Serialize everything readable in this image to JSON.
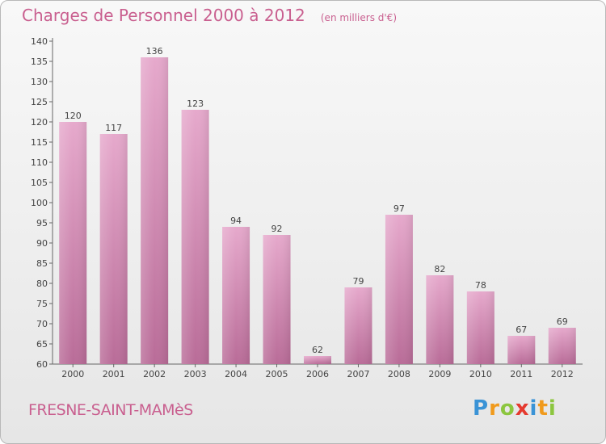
{
  "chart_data": {
    "type": "bar",
    "title": "Charges de Personnel 2000 à 2012",
    "subtitle": "(en milliers d'€)",
    "categories": [
      "2000",
      "2001",
      "2002",
      "2003",
      "2004",
      "2005",
      "2006",
      "2007",
      "2008",
      "2009",
      "2010",
      "2011",
      "2012"
    ],
    "values": [
      120,
      117,
      136,
      123,
      94,
      92,
      62,
      79,
      97,
      82,
      78,
      67,
      69
    ],
    "ylim": [
      60,
      140
    ],
    "yticks": [
      60,
      65,
      70,
      75,
      80,
      85,
      90,
      95,
      100,
      105,
      110,
      115,
      120,
      125,
      130,
      135,
      140
    ],
    "grid": false,
    "bar_color": "#d48ab3",
    "legend": "none"
  },
  "footer": {
    "location": "FRESNE-SAINT-MAMèS",
    "brand_letters": [
      {
        "ch": "P",
        "color": "#3a93d6"
      },
      {
        "ch": "r",
        "color": "#f09a1c"
      },
      {
        "ch": "o",
        "color": "#8cc63f"
      },
      {
        "ch": "x",
        "color": "#e53a2f"
      },
      {
        "ch": "i",
        "color": "#3a93d6"
      },
      {
        "ch": "t",
        "color": "#f09a1c"
      },
      {
        "ch": "i",
        "color": "#8cc63f"
      }
    ]
  },
  "colors": {
    "accent": "#c95f8f",
    "bar_top": "#e6a9cc",
    "bar_bottom": "#b96c98",
    "axis": "#666666"
  }
}
